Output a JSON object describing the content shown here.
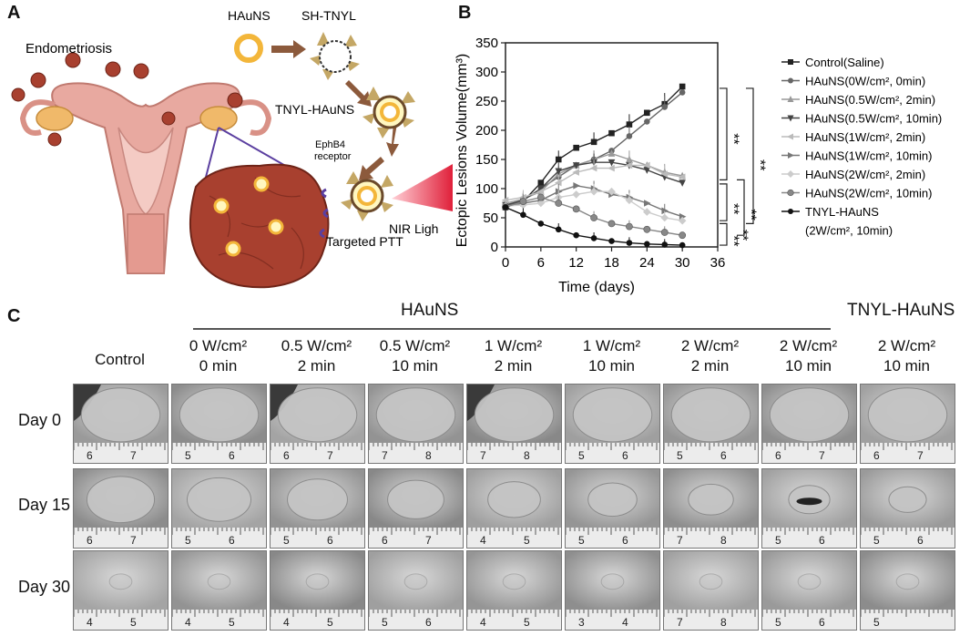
{
  "panelA": {
    "letter": "A",
    "labels": {
      "haun": "HAuNS",
      "sh_tnyl": "SH-TNYL",
      "tnyl_hauns": "TNYL-HAuNS",
      "endometriosis": "Endometriosis",
      "ephb4_line1": "EphB4",
      "ephb4_line2": "receptor",
      "nir": "NIR Ligh",
      "targeted": "Targeted PTT"
    },
    "colors": {
      "uterus": "#e8a9a0",
      "lesion": "#a8402f",
      "gold": "#f3b63a",
      "arrow": "#8c5a3c",
      "laser": "#e0203a"
    }
  },
  "panelB": {
    "letter": "B",
    "chart_data": {
      "type": "line",
      "xlabel": "Time (days)",
      "ylabel": "Ectopic Lesions Volume(mm³)",
      "xlim": [
        0,
        36
      ],
      "ylim": [
        0,
        350
      ],
      "xticks": [
        "0",
        "6",
        "12",
        "18",
        "24",
        "30",
        "36"
      ],
      "yticks": [
        "0",
        "50",
        "100",
        "150",
        "200",
        "250",
        "300",
        "350"
      ],
      "x": [
        0,
        3,
        6,
        9,
        12,
        15,
        18,
        21,
        24,
        27,
        30
      ],
      "series": [
        {
          "name": "Control(Saline)",
          "marker": "square",
          "color": "#222222",
          "values": [
            68,
            78,
            110,
            150,
            170,
            180,
            195,
            210,
            230,
            245,
            275
          ]
        },
        {
          "name": "HAuNS(0W/cm², 0min)",
          "marker": "circle",
          "color": "#666666",
          "values": [
            70,
            80,
            100,
            120,
            140,
            150,
            165,
            190,
            215,
            240,
            265
          ]
        },
        {
          "name": "HAuNS(0.5W/cm², 2min)",
          "marker": "triangle-up",
          "color": "#999999",
          "values": [
            75,
            82,
            95,
            125,
            140,
            150,
            160,
            150,
            140,
            128,
            122
          ]
        },
        {
          "name": "HAuNS(0.5W/cm², 10min)",
          "marker": "triangle-down",
          "color": "#444444",
          "values": [
            72,
            80,
            100,
            130,
            140,
            145,
            145,
            140,
            132,
            120,
            110
          ]
        },
        {
          "name": "HAuNS(1W/cm², 2min)",
          "marker": "triangle-left",
          "color": "#bbbbbb",
          "values": [
            80,
            85,
            95,
            110,
            128,
            135,
            135,
            140,
            140,
            125,
            120
          ]
        },
        {
          "name": "HAuNS(1W/cm², 10min)",
          "marker": "triangle-right",
          "color": "#777777",
          "values": [
            70,
            75,
            80,
            95,
            105,
            100,
            90,
            85,
            75,
            62,
            52
          ]
        },
        {
          "name": "HAuNS(2W/cm², 2min)",
          "marker": "diamond",
          "color": "#cccccc",
          "values": [
            70,
            72,
            75,
            85,
            90,
            95,
            95,
            80,
            60,
            50,
            45
          ]
        },
        {
          "name": "HAuNS(2W/cm², 10min)",
          "marker": "hexagon",
          "color": "#888888",
          "values": [
            68,
            78,
            85,
            75,
            65,
            50,
            40,
            35,
            30,
            25,
            20
          ]
        },
        {
          "name": "TNYL-HAuNS",
          "name_line2": "(2W/cm², 10min)",
          "marker": "circle",
          "color": "#111111",
          "values": [
            68,
            55,
            40,
            30,
            20,
            15,
            10,
            7,
            5,
            4,
            3
          ]
        }
      ],
      "significance": [
        "**",
        "**",
        "**",
        "**",
        "**",
        "**"
      ],
      "legend": "right"
    }
  },
  "panelC": {
    "letter": "C",
    "group_label_hauns": "HAuNS",
    "group_label_tnyl": "TNYL-HAuNS",
    "columns": [
      {
        "l1": "Control",
        "l2": ""
      },
      {
        "l1": "0 W/cm²",
        "l2": "0 min"
      },
      {
        "l1": "0.5 W/cm²",
        "l2": "2 min"
      },
      {
        "l1": "0.5 W/cm²",
        "l2": "10 min"
      },
      {
        "l1": "1 W/cm²",
        "l2": "2 min"
      },
      {
        "l1": "1 W/cm²",
        "l2": "10 min"
      },
      {
        "l1": "2 W/cm²",
        "l2": "2 min"
      },
      {
        "l1": "2 W/cm²",
        "l2": "10 min"
      },
      {
        "l1": "2 W/cm²",
        "l2": "10 min"
      }
    ],
    "rows": [
      {
        "label": "Day 0",
        "ruler": [
          [
            "6",
            "7"
          ],
          [
            "5",
            "6"
          ],
          [
            "6",
            "7"
          ],
          [
            "7",
            "8"
          ],
          [
            "7",
            "8"
          ],
          [
            "5",
            "6"
          ],
          [
            "5",
            "6"
          ],
          [
            "6",
            "7"
          ],
          [
            "6",
            "7"
          ]
        ]
      },
      {
        "label": "Day 15",
        "ruler": [
          [
            "6",
            "7"
          ],
          [
            "5",
            "6"
          ],
          [
            "5",
            "6"
          ],
          [
            "6",
            "7"
          ],
          [
            "4",
            "5"
          ],
          [
            "5",
            "6"
          ],
          [
            "7",
            "8"
          ],
          [
            "5",
            "6"
          ],
          [
            "5",
            "6"
          ]
        ]
      },
      {
        "label": "Day 30",
        "ruler": [
          [
            "4",
            "5"
          ],
          [
            "4",
            "5"
          ],
          [
            "4",
            "5"
          ],
          [
            "5",
            "6"
          ],
          [
            "4",
            "5"
          ],
          [
            "3",
            "4"
          ],
          [
            "7",
            "8"
          ],
          [
            "5",
            "6"
          ],
          [
            "5",
            ""
          ]
        ]
      }
    ]
  }
}
